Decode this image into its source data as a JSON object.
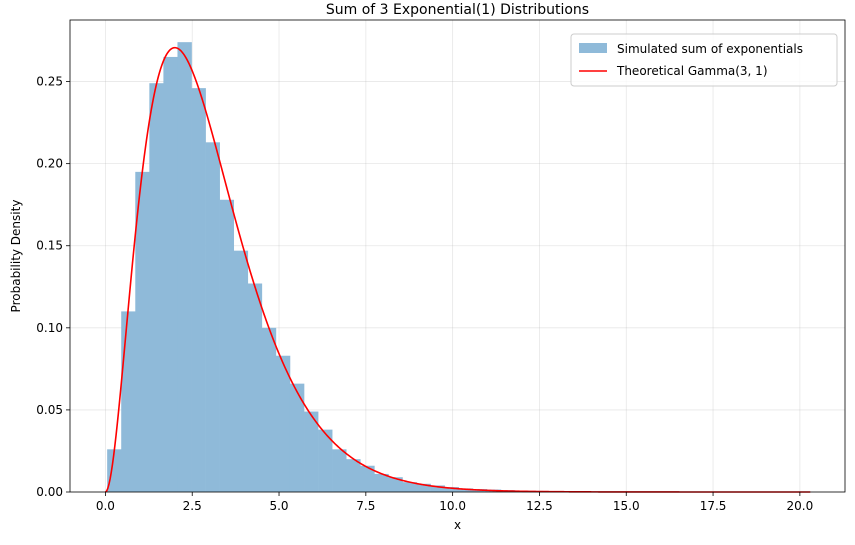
{
  "chart_data": {
    "type": "bar",
    "title": "Sum of 3 Exponential(1) Distributions",
    "xlabel": "x",
    "ylabel": "Probability Density",
    "xlim": [
      -1.02,
      21.3
    ],
    "ylim": [
      0,
      0.2875
    ],
    "xticks": [
      "0.0",
      "2.5",
      "5.0",
      "7.5",
      "10.0",
      "12.5",
      "15.0",
      "17.5",
      "20.0"
    ],
    "xtick_values": [
      0,
      2.5,
      5,
      7.5,
      10,
      12.5,
      15,
      17.5,
      20
    ],
    "yticks": [
      "0.00",
      "0.05",
      "0.10",
      "0.15",
      "0.20",
      "0.25"
    ],
    "ytick_values": [
      0,
      0.05,
      0.1,
      0.15,
      0.2,
      0.25
    ],
    "grid": true,
    "legend_position": "top-right",
    "histogram": {
      "name": "Simulated sum of exponentials",
      "color": "#8fbad9",
      "bin_start": 0.05,
      "bin_width": 0.405,
      "values": [
        0.026,
        0.11,
        0.195,
        0.249,
        0.265,
        0.274,
        0.246,
        0.213,
        0.178,
        0.147,
        0.127,
        0.1,
        0.083,
        0.066,
        0.049,
        0.038,
        0.026,
        0.02,
        0.016,
        0.011,
        0.009,
        0.006,
        0.005,
        0.004,
        0.003,
        0.0022,
        0.0018,
        0.0015,
        0.0012,
        0.0009,
        0.0007,
        0.0006,
        0.0005,
        0.0004,
        0.0003,
        0.0002,
        0.0002,
        0.0001,
        0.0001,
        0.0001,
        0.0001,
        0.0001,
        0.0001,
        0.0001,
        0.0001,
        0.0001,
        0.0001,
        0.0001,
        0.0001,
        0.0001
      ]
    },
    "curve": {
      "name": "Theoretical Gamma(3, 1)",
      "color": "#ff0000",
      "x_start": 0,
      "x_end": 20.3,
      "shape": 3,
      "scale": 1
    }
  }
}
